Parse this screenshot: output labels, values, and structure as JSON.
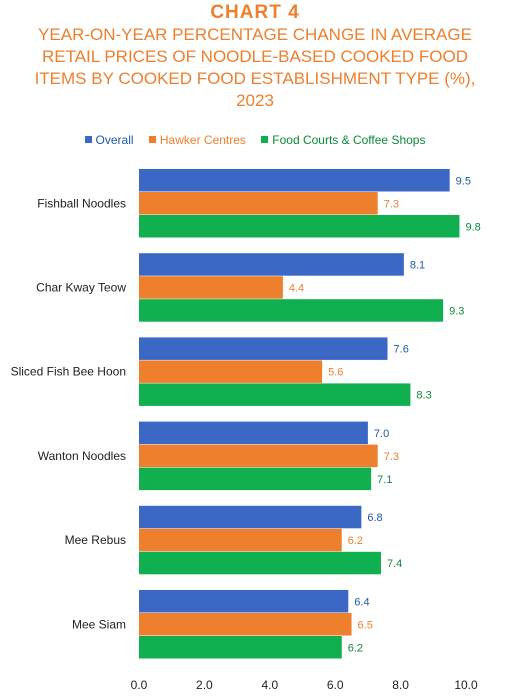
{
  "chart_label": "CHART 4",
  "chart_data": {
    "type": "bar",
    "orientation": "horizontal",
    "title": "YEAR-ON-YEAR PERCENTAGE CHANGE IN AVERAGE RETAIL PRICES OF NOODLE-BASED COOKED FOOD ITEMS BY COOKED FOOD ESTABLISHMENT TYPE (%), 2023",
    "categories": [
      "Fishball Noodles",
      "Char Kway Teow",
      "Sliced Fish Bee Hoon",
      "Wanton Noodles",
      "Mee Rebus",
      "Mee Siam"
    ],
    "series": [
      {
        "name": "Overall",
        "color": "#3a68c4",
        "label_color": "#1e5aa8",
        "values": [
          9.5,
          8.1,
          7.6,
          7.0,
          6.8,
          6.4
        ],
        "labels": [
          "9.5",
          "8.1",
          "7.6",
          "7.0",
          "6.8",
          "6.4"
        ]
      },
      {
        "name": "Hawker Centres",
        "color": "#ee7f2d",
        "label_color": "#ee7f2d",
        "values": [
          7.3,
          4.4,
          5.6,
          7.3,
          6.2,
          6.5
        ],
        "labels": [
          "7.3",
          "4.4",
          "5.6",
          "7.3",
          "6.2",
          "6.5"
        ]
      },
      {
        "name": "Food Courts & Coffee Shops",
        "color": "#10b050",
        "label_color": "#0a8a3a",
        "values": [
          9.8,
          9.3,
          8.3,
          7.1,
          7.4,
          6.2
        ],
        "labels": [
          "9.8",
          "9.3",
          "8.3",
          "7.1",
          "7.4",
          "6.2"
        ]
      }
    ],
    "xlim": [
      0,
      10
    ],
    "x_ticks": [
      "0.0",
      "2.0",
      "4.0",
      "6.0",
      "8.0",
      "10.0"
    ],
    "legend_position": "top",
    "grid": false
  }
}
